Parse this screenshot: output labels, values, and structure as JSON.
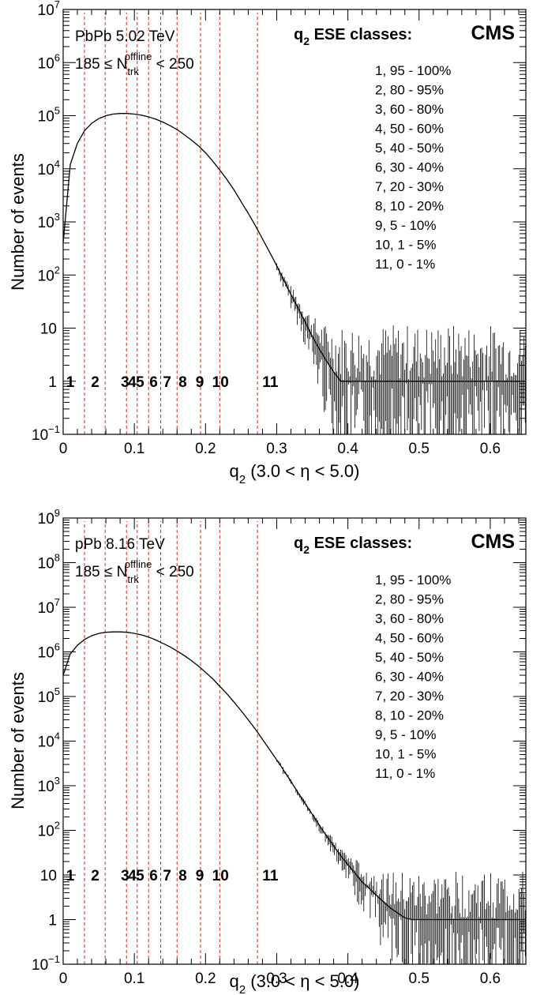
{
  "chart_data": [
    {
      "type": "histogram",
      "system": "PbPb 5.02 TeV",
      "selection": "185 ≤ N_trk^offline < 250",
      "experiment": "CMS",
      "legend_title": "q2 ESE classes:",
      "xlabel": "q2 (3.0 < η < 5.0)",
      "ylabel": "Number of events",
      "xlim": [
        0,
        0.65
      ],
      "ylim": [
        0.1,
        10000000
      ],
      "yscale": "log",
      "grid": false,
      "legend_position": "top-right",
      "x_ticks": [
        "0",
        "0.1",
        "0.2",
        "0.3",
        "0.4",
        "0.5",
        "0.6"
      ],
      "x_tick_values": [
        0,
        0.1,
        0.2,
        0.3,
        0.4,
        0.5,
        0.6
      ],
      "y_ticks": [
        {
          "value": 0.1,
          "base": "10",
          "exp": "−1"
        },
        {
          "value": 1,
          "base": "1",
          "exp": ""
        },
        {
          "value": 10,
          "base": "10",
          "exp": ""
        },
        {
          "value": 100,
          "base": "10",
          "exp": "2"
        },
        {
          "value": 1000,
          "base": "10",
          "exp": "3"
        },
        {
          "value": 10000,
          "base": "10",
          "exp": "4"
        },
        {
          "value": 100000,
          "base": "10",
          "exp": "5"
        },
        {
          "value": 1000000,
          "base": "10",
          "exp": "6"
        },
        {
          "value": 10000000,
          "base": "10",
          "exp": "7"
        }
      ],
      "class_boundaries": [
        0.03,
        0.059,
        0.089,
        0.104,
        0.12,
        0.137,
        0.16,
        0.193,
        0.22,
        0.273
      ],
      "class_labels": [
        {
          "label": "1",
          "q2": 0.01
        },
        {
          "label": "2",
          "q2": 0.045
        },
        {
          "label": "3",
          "q2": 0.087
        },
        {
          "label": "4",
          "q2": 0.097
        },
        {
          "label": "5",
          "q2": 0.108
        },
        {
          "label": "6",
          "q2": 0.127
        },
        {
          "label": "7",
          "q2": 0.146
        },
        {
          "label": "8",
          "q2": 0.168
        },
        {
          "label": "9",
          "q2": 0.192
        },
        {
          "label": "10",
          "q2": 0.221
        },
        {
          "label": "11",
          "q2": 0.291
        }
      ],
      "class_label_y": 1,
      "ese_classes": [
        "1, 95 - 100%",
        "2, 80 - 95%",
        "3, 60 - 80%",
        "4, 50 - 60%",
        "5, 40 - 50%",
        "6, 30 - 40%",
        "7, 20 - 30%",
        "8, 10 - 20%",
        "9,   5 - 10%",
        "10, 1 - 5%",
        "11, 0 - 1%"
      ],
      "series": [
        {
          "x": [
            0.0,
            0.01,
            0.02,
            0.03,
            0.04,
            0.05,
            0.06,
            0.07,
            0.08,
            0.09,
            0.1,
            0.11,
            0.12,
            0.13,
            0.14,
            0.15,
            0.16,
            0.17,
            0.18,
            0.19,
            0.2,
            0.21,
            0.22,
            0.23,
            0.24,
            0.25,
            0.26,
            0.27,
            0.28,
            0.29,
            0.3,
            0.31,
            0.32,
            0.33,
            0.34,
            0.35,
            0.36,
            0.37,
            0.38,
            0.39,
            0.4,
            0.41,
            0.42,
            0.43,
            0.44,
            0.45,
            0.46,
            0.47,
            0.48,
            0.49,
            0.5,
            0.51,
            0.52,
            0.53,
            0.54,
            0.55,
            0.56,
            0.57,
            0.58,
            0.59,
            0.6,
            0.61,
            0.62,
            0.63,
            0.64,
            0.65
          ],
          "y": [
            400,
            12000,
            30000,
            52000,
            72000,
            88000,
            100000,
            107000,
            110000,
            110000,
            107000,
            102000,
            95000,
            86000,
            76000,
            65000,
            55000,
            44000,
            35000,
            27000,
            20000,
            14000,
            9500,
            6300,
            4000,
            2400,
            1450,
            850,
            480,
            270,
            150,
            80,
            43,
            24,
            13,
            7,
            4,
            2.4,
            1.5,
            1,
            1,
            1,
            1,
            1,
            1,
            1,
            1,
            1,
            1,
            1,
            1,
            1,
            1,
            1,
            1,
            1,
            1,
            1,
            1,
            1,
            1,
            1,
            1,
            1,
            1,
            1
          ]
        }
      ]
    },
    {
      "type": "histogram",
      "system": "pPb 8.16 TeV",
      "selection": "185 ≤ N_trk^offline < 250",
      "experiment": "CMS",
      "legend_title": "q2 ESE classes:",
      "xlabel": "q2 (3.0 < η < 5.0)",
      "ylabel": "Number of events",
      "xlim": [
        0,
        0.65
      ],
      "ylim": [
        0.1,
        1000000000
      ],
      "yscale": "log",
      "grid": false,
      "legend_position": "top-right",
      "x_ticks": [
        "0",
        "0.1",
        "0.2",
        "0.3",
        "0.4",
        "0.5",
        "0.6"
      ],
      "x_tick_values": [
        0,
        0.1,
        0.2,
        0.3,
        0.4,
        0.5,
        0.6
      ],
      "y_ticks": [
        {
          "value": 0.1,
          "base": "10",
          "exp": "−1"
        },
        {
          "value": 1,
          "base": "1",
          "exp": ""
        },
        {
          "value": 10,
          "base": "10",
          "exp": ""
        },
        {
          "value": 100,
          "base": "10",
          "exp": "2"
        },
        {
          "value": 1000,
          "base": "10",
          "exp": "3"
        },
        {
          "value": 10000,
          "base": "10",
          "exp": "4"
        },
        {
          "value": 100000,
          "base": "10",
          "exp": "5"
        },
        {
          "value": 1000000,
          "base": "10",
          "exp": "6"
        },
        {
          "value": 10000000,
          "base": "10",
          "exp": "7"
        },
        {
          "value": 100000000,
          "base": "10",
          "exp": "8"
        },
        {
          "value": 1000000000,
          "base": "10",
          "exp": "9"
        }
      ],
      "class_boundaries": [
        0.03,
        0.059,
        0.089,
        0.104,
        0.12,
        0.137,
        0.16,
        0.193,
        0.22,
        0.273
      ],
      "class_labels": [
        {
          "label": "1",
          "q2": 0.01
        },
        {
          "label": "2",
          "q2": 0.045
        },
        {
          "label": "3",
          "q2": 0.087
        },
        {
          "label": "4",
          "q2": 0.097
        },
        {
          "label": "5",
          "q2": 0.108
        },
        {
          "label": "6",
          "q2": 0.127
        },
        {
          "label": "7",
          "q2": 0.146
        },
        {
          "label": "8",
          "q2": 0.168
        },
        {
          "label": "9",
          "q2": 0.192
        },
        {
          "label": "10",
          "q2": 0.221
        },
        {
          "label": "11",
          "q2": 0.291
        }
      ],
      "class_label_y": 10,
      "ese_classes": [
        "1, 95 - 100%",
        "2, 80 - 95%",
        "3, 60 - 80%",
        "4, 50 - 60%",
        "5, 40 - 50%",
        "6, 30 - 40%",
        "7, 20 - 30%",
        "8, 10 - 20%",
        "9,   5 - 10%",
        "10, 1 - 5%",
        "11, 0 - 1%"
      ],
      "series": [
        {
          "x": [
            0.0,
            0.01,
            0.02,
            0.03,
            0.04,
            0.05,
            0.06,
            0.07,
            0.08,
            0.09,
            0.1,
            0.11,
            0.12,
            0.13,
            0.14,
            0.15,
            0.16,
            0.17,
            0.18,
            0.19,
            0.2,
            0.21,
            0.22,
            0.23,
            0.24,
            0.25,
            0.26,
            0.27,
            0.28,
            0.29,
            0.3,
            0.31,
            0.32,
            0.33,
            0.34,
            0.35,
            0.36,
            0.37,
            0.38,
            0.39,
            0.4,
            0.41,
            0.42,
            0.43,
            0.44,
            0.45,
            0.46,
            0.47,
            0.48,
            0.49,
            0.5,
            0.51,
            0.52,
            0.53,
            0.54,
            0.55,
            0.56,
            0.57,
            0.58,
            0.59,
            0.6,
            0.61,
            0.62,
            0.63,
            0.64,
            0.65
          ],
          "y": [
            300000,
            900000,
            1400000,
            1900000,
            2300000,
            2600000,
            2750000,
            2800000,
            2800000,
            2750000,
            2600000,
            2400000,
            2150000,
            1850000,
            1550000,
            1300000,
            1050000,
            830000,
            640000,
            480000,
            350000,
            250000,
            170000,
            115000,
            75000,
            48000,
            30000,
            18500,
            11000,
            6500,
            3800,
            2200,
            1250,
            700,
            400,
            230,
            130,
            75,
            45,
            27,
            17,
            11,
            7,
            5,
            3.5,
            2.5,
            1.8,
            1.4,
            1.1,
            1,
            1,
            1,
            1,
            1,
            1,
            1,
            1,
            1,
            1,
            1,
            1,
            1,
            1,
            1,
            1,
            1
          ]
        }
      ]
    }
  ]
}
